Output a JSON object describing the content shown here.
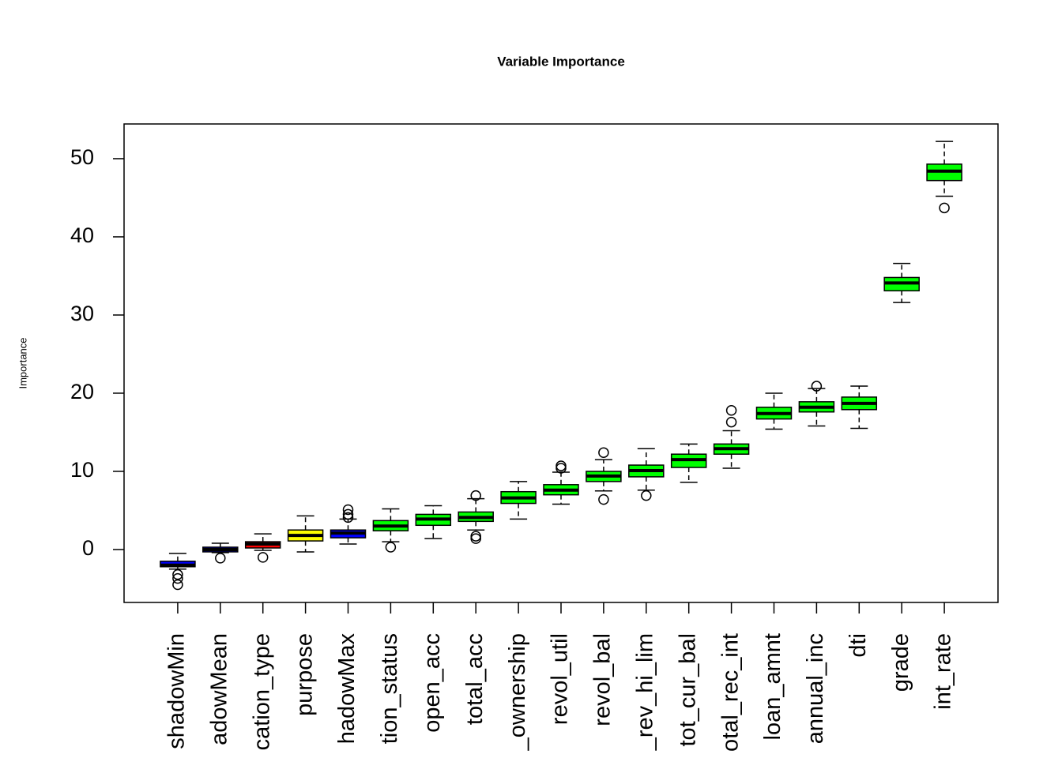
{
  "chart_data": {
    "type": "box",
    "title": "Variable Importance",
    "y_label": "Importance",
    "ylim": [
      -6.77,
      54.44
    ],
    "yticks": [
      0,
      10,
      20,
      30,
      40,
      50
    ],
    "whisker_color": "#000000",
    "boxes": [
      {
        "name": "shadowMin",
        "color": "#0000ff",
        "low": -2.5,
        "q1": -2.2,
        "median": -2.0,
        "q3": -1.5,
        "high": -0.5,
        "outliers": [
          -3.2,
          -3.7,
          -4.5
        ]
      },
      {
        "name": "adowMean",
        "color": "#0000ff",
        "low": -0.4,
        "q1": -0.3,
        "median": 0.0,
        "q3": 0.3,
        "high": 0.8,
        "outliers": [
          -1.1
        ]
      },
      {
        "name": "cation_type",
        "color": "#ff0000",
        "low": -0.1,
        "q1": 0.2,
        "median": 0.7,
        "q3": 1.0,
        "high": 2.0,
        "outliers": [
          -1.0
        ]
      },
      {
        "name": "purpose",
        "color": "#ffff00",
        "low": -0.3,
        "q1": 1.1,
        "median": 1.8,
        "q3": 2.5,
        "high": 4.3,
        "outliers": []
      },
      {
        "name": "hadowMax",
        "color": "#0000ff",
        "low": 0.7,
        "q1": 1.5,
        "median": 2.1,
        "q3": 2.5,
        "high": 3.9,
        "outliers": [
          5.1,
          4.5,
          4.1
        ]
      },
      {
        "name": "tion_status",
        "color": "#00ff00",
        "low": 1.0,
        "q1": 2.4,
        "median": 3.0,
        "q3": 3.7,
        "high": 5.2,
        "outliers": [
          0.3
        ]
      },
      {
        "name": "open_acc",
        "color": "#00ff00",
        "low": 1.4,
        "q1": 3.1,
        "median": 3.9,
        "q3": 4.5,
        "high": 5.6,
        "outliers": []
      },
      {
        "name": "total_acc",
        "color": "#00ff00",
        "low": 2.5,
        "q1": 3.6,
        "median": 4.1,
        "q3": 4.8,
        "high": 6.5,
        "outliers": [
          6.9,
          1.7,
          1.4
        ]
      },
      {
        "name": "_ownership",
        "color": "#00ff00",
        "low": 3.9,
        "q1": 5.9,
        "median": 6.6,
        "q3": 7.4,
        "high": 8.7,
        "outliers": []
      },
      {
        "name": "revol_util",
        "color": "#00ff00",
        "low": 5.8,
        "q1": 7.0,
        "median": 7.6,
        "q3": 8.3,
        "high": 9.9,
        "outliers": [
          10.7,
          10.4
        ]
      },
      {
        "name": "revol_bal",
        "color": "#00ff00",
        "low": 7.5,
        "q1": 8.7,
        "median": 9.4,
        "q3": 10.0,
        "high": 11.5,
        "outliers": [
          12.4,
          6.4
        ]
      },
      {
        "name": "_rev_hi_lim",
        "color": "#00ff00",
        "low": 7.6,
        "q1": 9.3,
        "median": 10.1,
        "q3": 10.8,
        "high": 12.9,
        "outliers": [
          6.9
        ]
      },
      {
        "name": "tot_cur_bal",
        "color": "#00ff00",
        "low": 8.6,
        "q1": 10.5,
        "median": 11.5,
        "q3": 12.2,
        "high": 13.5,
        "outliers": []
      },
      {
        "name": "otal_rec_int",
        "color": "#00ff00",
        "low": 10.4,
        "q1": 12.2,
        "median": 12.9,
        "q3": 13.5,
        "high": 15.2,
        "outliers": [
          17.8,
          16.3
        ]
      },
      {
        "name": "loan_amnt",
        "color": "#00ff00",
        "low": 15.4,
        "q1": 16.7,
        "median": 17.4,
        "q3": 18.2,
        "high": 20.0,
        "outliers": []
      },
      {
        "name": "annual_inc",
        "color": "#00ff00",
        "low": 15.8,
        "q1": 17.6,
        "median": 18.2,
        "q3": 18.9,
        "high": 20.6,
        "outliers": [
          20.9
        ]
      },
      {
        "name": "dti",
        "color": "#00ff00",
        "low": 15.5,
        "q1": 17.9,
        "median": 18.7,
        "q3": 19.5,
        "high": 20.9,
        "outliers": []
      },
      {
        "name": "grade",
        "color": "#00ff00",
        "low": 31.6,
        "q1": 33.1,
        "median": 34.1,
        "q3": 34.8,
        "high": 36.6,
        "outliers": []
      },
      {
        "name": "int_rate",
        "color": "#00ff00",
        "low": 45.2,
        "q1": 47.2,
        "median": 48.4,
        "q3": 49.3,
        "high": 52.2,
        "outliers": [
          43.7
        ]
      }
    ]
  }
}
